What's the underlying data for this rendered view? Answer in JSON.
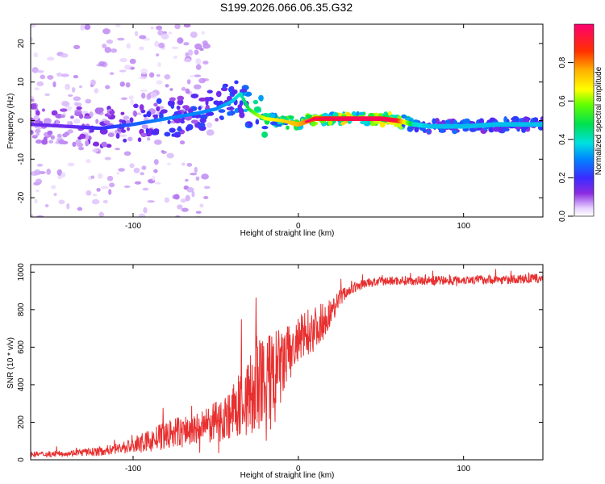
{
  "title": "S199.2026.066.06.35.G32",
  "chart_data": [
    {
      "type": "heatmap",
      "name": "spectrogram",
      "xlabel": "Height of straight line (km)",
      "ylabel": "Frequency (Hz)",
      "xlim": [
        -162,
        148
      ],
      "ylim": [
        -25,
        25
      ],
      "xticks": [
        -100,
        0,
        100
      ],
      "xtick_labels": [
        "-100",
        "0",
        "100"
      ],
      "yticks": [
        -20,
        -10,
        0,
        10,
        20
      ],
      "ytick_labels": [
        "-20",
        "-10",
        "0",
        "10",
        "20"
      ],
      "colorbar": {
        "label": "Normalized spectral amplitude",
        "range": [
          0,
          1
        ],
        "ticks": [
          0.0,
          0.2,
          0.4,
          0.6,
          0.8
        ],
        "tick_labels": [
          "0.0",
          "0.2",
          "0.4",
          "0.6",
          "0.8"
        ]
      },
      "ridge": {
        "x": [
          -160,
          -140,
          -120,
          -100,
          -80,
          -60,
          -50,
          -40,
          -35,
          -30,
          -25,
          -20,
          -10,
          0,
          10,
          30,
          50,
          60,
          70,
          80,
          100,
          120,
          148
        ],
        "frequency": [
          -1,
          -1.5,
          -2,
          -1,
          0.5,
          2,
          3,
          5,
          7,
          3,
          1.5,
          0.5,
          0,
          -1,
          0.5,
          0.5,
          0.5,
          0,
          -1,
          -1.5,
          -1.5,
          -1,
          -1
        ],
        "amplitude": [
          0.15,
          0.15,
          0.2,
          0.25,
          0.3,
          0.3,
          0.3,
          0.35,
          0.4,
          0.5,
          0.6,
          0.65,
          0.7,
          0.75,
          0.85,
          0.95,
          0.95,
          0.9,
          0.4,
          0.35,
          0.35,
          0.35,
          0.35
        ]
      }
    },
    {
      "type": "line",
      "name": "snr",
      "xlabel": "Height of straight line (km)",
      "ylabel": "SNR (10 * v/v)",
      "xlim": [
        -162,
        148
      ],
      "ylim": [
        0,
        1040
      ],
      "xticks": [
        -100,
        0,
        100
      ],
      "xtick_labels": [
        "-100",
        "0",
        "100"
      ],
      "yticks": [
        0,
        200,
        400,
        600,
        800,
        1000
      ],
      "ytick_labels": [
        "0",
        "200",
        "400",
        "600",
        "800",
        "1000"
      ],
      "series": [
        {
          "name": "SNR",
          "color": "#e83030",
          "x": [
            -160,
            -150,
            -140,
            -130,
            -120,
            -110,
            -100,
            -90,
            -80,
            -70,
            -60,
            -50,
            -40,
            -35,
            -30,
            -25,
            -20,
            -15,
            -10,
            -5,
            0,
            5,
            10,
            15,
            20,
            25,
            30,
            40,
            50,
            60,
            70,
            80,
            90,
            100,
            110,
            120,
            130,
            140,
            148
          ],
          "mean": [
            30,
            30,
            35,
            40,
            45,
            60,
            75,
            100,
            130,
            150,
            160,
            200,
            250,
            300,
            330,
            380,
            380,
            420,
            500,
            570,
            620,
            680,
            700,
            740,
            790,
            860,
            900,
            940,
            950,
            955,
            955,
            955,
            955,
            960,
            960,
            960,
            960,
            965,
            965
          ],
          "spread": [
            15,
            15,
            15,
            20,
            25,
            30,
            45,
            60,
            80,
            90,
            90,
            110,
            140,
            180,
            220,
            280,
            300,
            280,
            200,
            160,
            140,
            130,
            120,
            100,
            70,
            50,
            30,
            25,
            25,
            25,
            25,
            25,
            25,
            25,
            25,
            25,
            25,
            25,
            25
          ]
        }
      ]
    }
  ]
}
